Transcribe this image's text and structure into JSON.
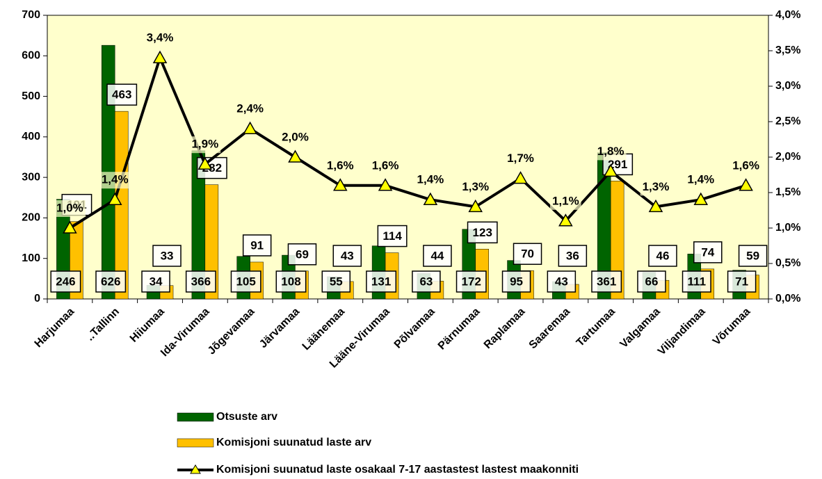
{
  "chart_data": {
    "type": "bar",
    "categories": [
      "Harjumaa",
      "..Tallinn",
      "Hiiumaa",
      "Ida-Virumaa",
      "Jõgevamaa",
      "Järvamaa",
      "Läänemaa",
      "Lääne-Virumaa",
      "Põlvamaa",
      "Pärnumaa",
      "Raplamaa",
      "Saaremaa",
      "Tartumaa",
      "Valgamaa",
      "Viljandimaa",
      "Võrumaa"
    ],
    "series": [
      {
        "name": "Otsuste arv",
        "color": "#006400",
        "values": [
          246,
          626,
          34,
          366,
          105,
          108,
          55,
          131,
          63,
          172,
          95,
          43,
          361,
          66,
          111,
          71
        ]
      },
      {
        "name": "Komisjoni suunatud laste arv",
        "color": "#ffc000",
        "values": [
          191,
          463,
          33,
          282,
          91,
          69,
          43,
          114,
          44,
          123,
          70,
          36,
          291,
          46,
          74,
          59
        ]
      },
      {
        "name": "Komisjoni suunatud laste osakaal 7-17 aastastest lastest maakonniti",
        "type": "line",
        "axis": "y2",
        "color": "#000000",
        "marker_color": "#ffff00",
        "values": [
          1.0,
          1.4,
          3.4,
          1.9,
          2.4,
          2.0,
          1.6,
          1.6,
          1.4,
          1.3,
          1.7,
          1.1,
          1.8,
          1.3,
          1.4,
          1.6
        ],
        "value_labels": [
          "1,0%",
          "1,4%",
          "3,4%",
          "1,9%",
          "2,4%",
          "2,0%",
          "1,6%",
          "1,6%",
          "1,4%",
          "1,3%",
          "1,7%",
          "1,1%",
          "1,8%",
          "1,3%",
          "1,4%",
          "1,6%"
        ]
      }
    ],
    "ylim": [
      0,
      700
    ],
    "yticks": [
      0,
      100,
      200,
      300,
      400,
      500,
      600,
      700
    ],
    "y2lim": [
      0,
      4
    ],
    "y2ticks": [
      {
        "value": 0,
        "label": "0,0%"
      },
      {
        "value": 0.5,
        "label": "0,5%"
      },
      {
        "value": 1,
        "label": "1,0%"
      },
      {
        "value": 1.5,
        "label": "1,5%"
      },
      {
        "value": 2,
        "label": "2,0%"
      },
      {
        "value": 2.5,
        "label": "2,5%"
      },
      {
        "value": 3,
        "label": "3,0%"
      },
      {
        "value": 3.5,
        "label": "3,5%"
      },
      {
        "value": 4,
        "label": "4,0%"
      }
    ],
    "legend": "bottom"
  }
}
